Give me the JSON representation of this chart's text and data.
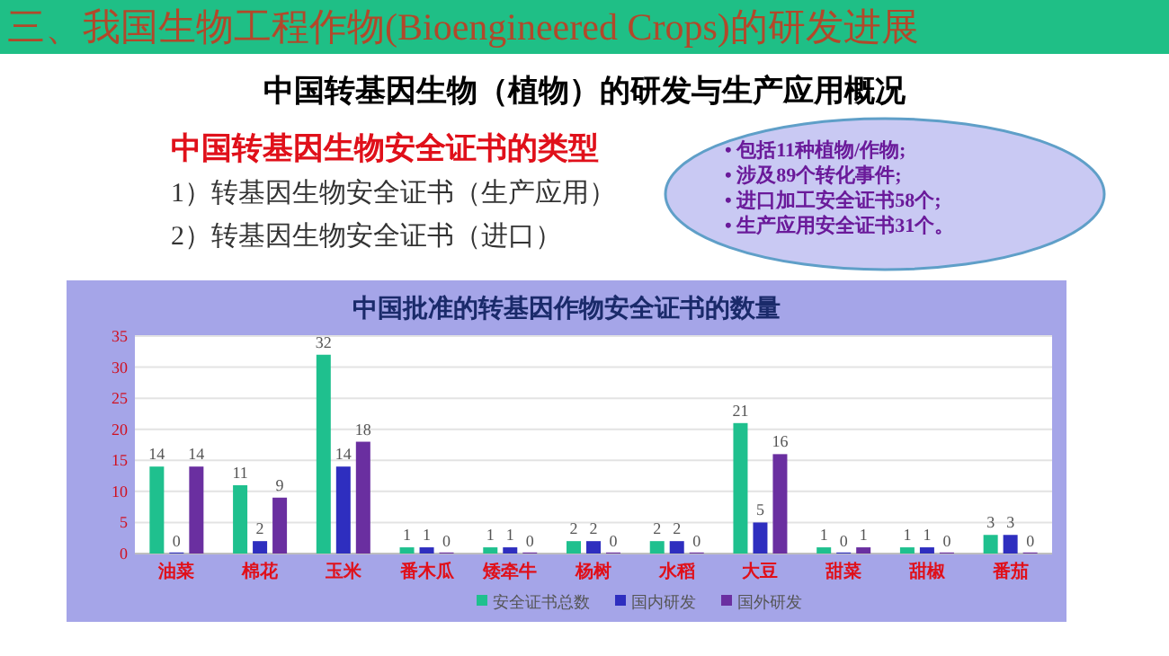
{
  "chart_data": {
    "type": "bar",
    "title": "中国批准的转基因作物安全证书的数量",
    "subtitle": "中国转基因生物（植物）的研发与生产应用概况",
    "annotations": [
      "三、我国生物工程作物(Bioengineered Crops)的研发进展",
      "中国转基因生物安全证书的类型",
      "1）转基因生物安全证书（生产应用）",
      "2）转基因生物安全证书（进口）",
      "• 包括11种植物/作物;",
      "• 涉及89个转化事件;",
      "• 进口加工安全证书58个;",
      "• 生产应用安全证书31个。"
    ],
    "categories": [
      "油菜",
      "棉花",
      "玉米",
      "番木瓜",
      "矮牵牛",
      "杨树",
      "水稻",
      "大豆",
      "甜菜",
      "甜椒",
      "番茄"
    ],
    "series": [
      {
        "name": "安全证书总数",
        "color": "#1fc08e",
        "values": [
          14,
          11,
          32,
          1,
          1,
          2,
          2,
          21,
          1,
          1,
          3
        ]
      },
      {
        "name": "国内研发",
        "color": "#2e2ebf",
        "values": [
          0,
          2,
          14,
          1,
          1,
          2,
          2,
          5,
          0,
          1,
          3
        ]
      },
      {
        "name": "国外研发",
        "color": "#6a2fa0",
        "values": [
          14,
          9,
          18,
          0,
          0,
          0,
          0,
          16,
          1,
          0,
          0
        ]
      }
    ],
    "ylim": [
      0,
      35
    ],
    "yticks": [
      0,
      5,
      10,
      15,
      20,
      25,
      30,
      35
    ],
    "grid": "y",
    "legend": "bottom",
    "data_labels": true
  }
}
